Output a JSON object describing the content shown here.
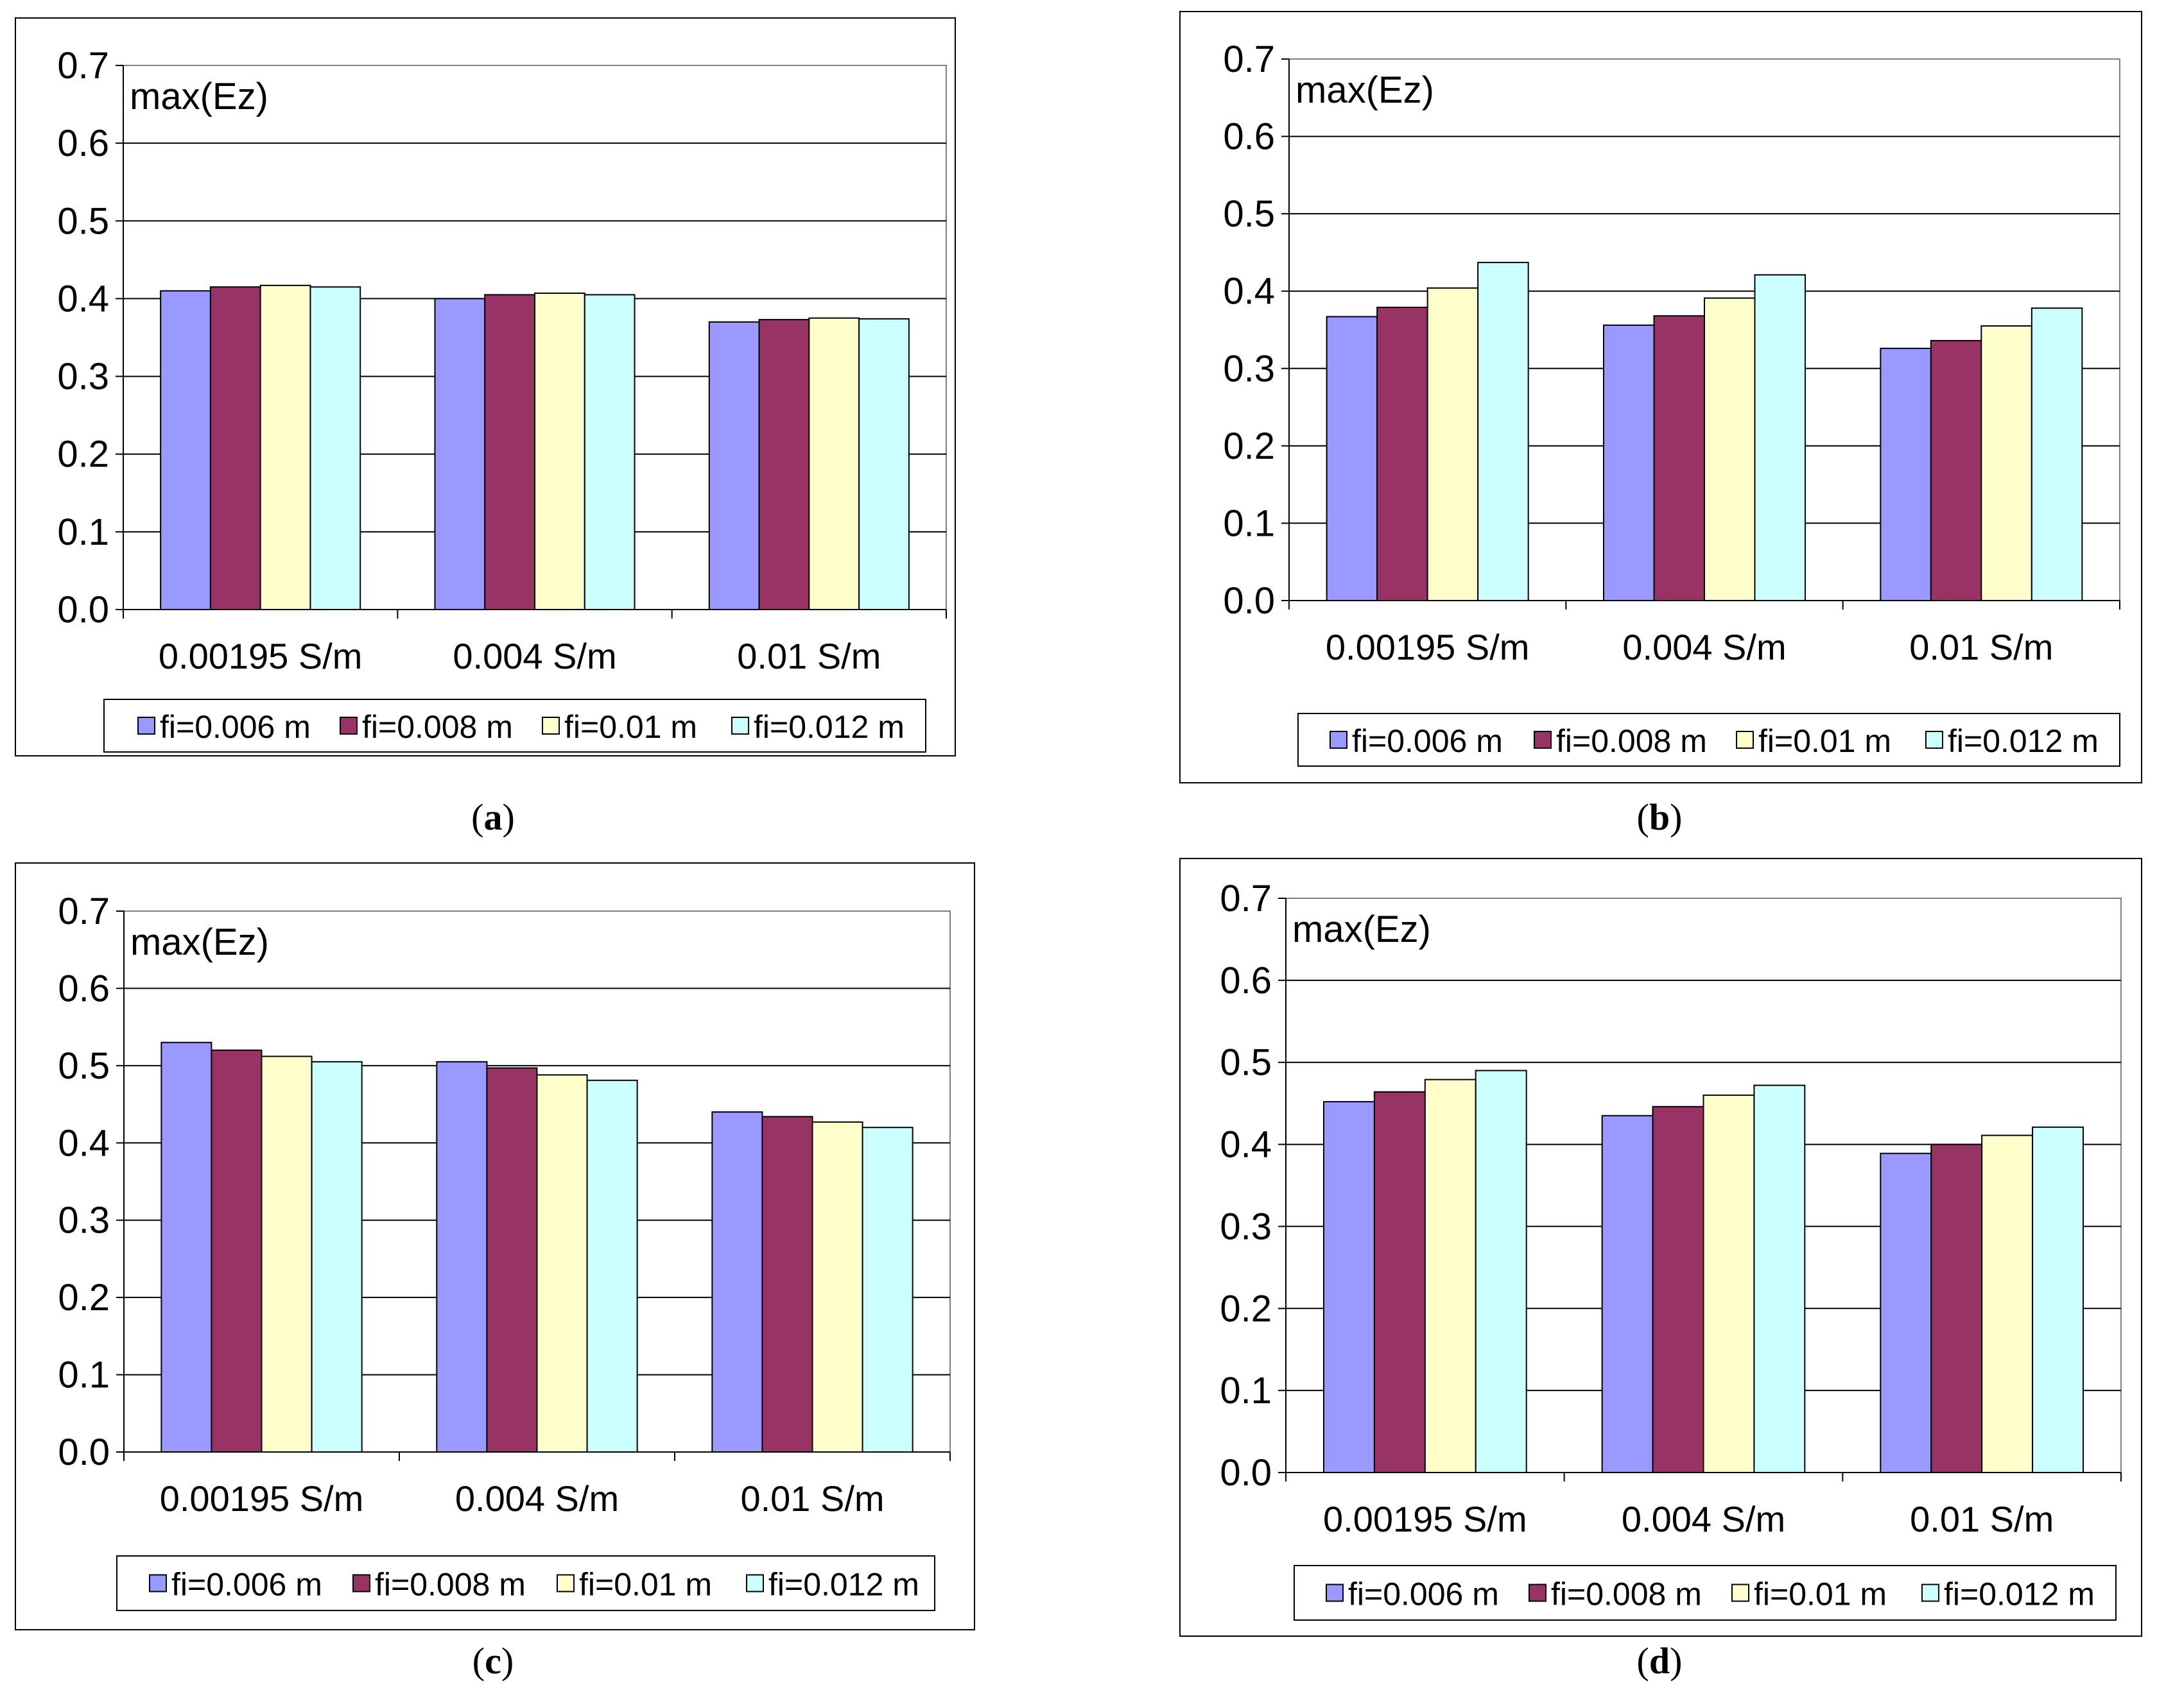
{
  "legend_colors": [
    "#9999FF",
    "#993366",
    "#FFFFCC",
    "#CCFFFF"
  ],
  "chart_data": [
    {
      "type": "bar",
      "panel": "a",
      "caption": "a",
      "ylabel": "max(Ez)",
      "ylim": [
        0,
        0.7
      ],
      "yticks": [
        "0.0",
        "0.1",
        "0.2",
        "0.3",
        "0.4",
        "0.5",
        "0.6",
        "0.7"
      ],
      "categories": [
        "0.00195 S/m",
        "0.004 S/m",
        "0.01 S/m"
      ],
      "legend_position": "bottom",
      "series": [
        {
          "name": "fi=0.006 m",
          "values": [
            0.41,
            0.4,
            0.37
          ]
        },
        {
          "name": "fi=0.008 m",
          "values": [
            0.415,
            0.405,
            0.373
          ]
        },
        {
          "name": "fi=0.01 m",
          "values": [
            0.417,
            0.407,
            0.375
          ]
        },
        {
          "name": "fi=0.012 m",
          "values": [
            0.415,
            0.405,
            0.374
          ]
        }
      ]
    },
    {
      "type": "bar",
      "panel": "b",
      "caption": "b",
      "ylabel": "max(Ez)",
      "ylim": [
        0,
        0.7
      ],
      "yticks": [
        "0.0",
        "0.1",
        "0.2",
        "0.3",
        "0.4",
        "0.5",
        "0.6",
        "0.7"
      ],
      "categories": [
        "0.00195 S/m",
        "0.004 S/m",
        "0.01 S/m"
      ],
      "legend_position": "bottom",
      "series": [
        {
          "name": "fi=0.006 m",
          "values": [
            0.367,
            0.356,
            0.326
          ]
        },
        {
          "name": "fi=0.008 m",
          "values": [
            0.379,
            0.368,
            0.336
          ]
        },
        {
          "name": "fi=0.01 m",
          "values": [
            0.404,
            0.391,
            0.355
          ]
        },
        {
          "name": "fi=0.012 m",
          "values": [
            0.437,
            0.421,
            0.378
          ]
        }
      ]
    },
    {
      "type": "bar",
      "panel": "c",
      "caption": "c",
      "ylabel": "max(Ez)",
      "ylim": [
        0,
        0.7
      ],
      "yticks": [
        "0.0",
        "0.1",
        "0.2",
        "0.3",
        "0.4",
        "0.5",
        "0.6",
        "0.7"
      ],
      "categories": [
        "0.00195 S/m",
        "0.004 S/m",
        "0.01 S/m"
      ],
      "legend_position": "bottom",
      "series": [
        {
          "name": "fi=0.006 m",
          "values": [
            0.53,
            0.505,
            0.44
          ]
        },
        {
          "name": "fi=0.008 m",
          "values": [
            0.52,
            0.497,
            0.434
          ]
        },
        {
          "name": "fi=0.01 m",
          "values": [
            0.512,
            0.488,
            0.427
          ]
        },
        {
          "name": "fi=0.012 m",
          "values": [
            0.505,
            0.481,
            0.42
          ]
        }
      ]
    },
    {
      "type": "bar",
      "panel": "d",
      "caption": "d",
      "ylabel": "max(Ez)",
      "ylim": [
        0,
        0.7
      ],
      "yticks": [
        "0.0",
        "0.1",
        "0.2",
        "0.3",
        "0.4",
        "0.5",
        "0.6",
        "0.7"
      ],
      "categories": [
        "0.00195 S/m",
        "0.004 S/m",
        "0.01 S/m"
      ],
      "legend_position": "bottom",
      "series": [
        {
          "name": "fi=0.006 m",
          "values": [
            0.452,
            0.435,
            0.389
          ]
        },
        {
          "name": "fi=0.008 m",
          "values": [
            0.464,
            0.446,
            0.4
          ]
        },
        {
          "name": "fi=0.01 m",
          "values": [
            0.479,
            0.46,
            0.411
          ]
        },
        {
          "name": "fi=0.012 m",
          "values": [
            0.49,
            0.472,
            0.421
          ]
        }
      ]
    }
  ]
}
